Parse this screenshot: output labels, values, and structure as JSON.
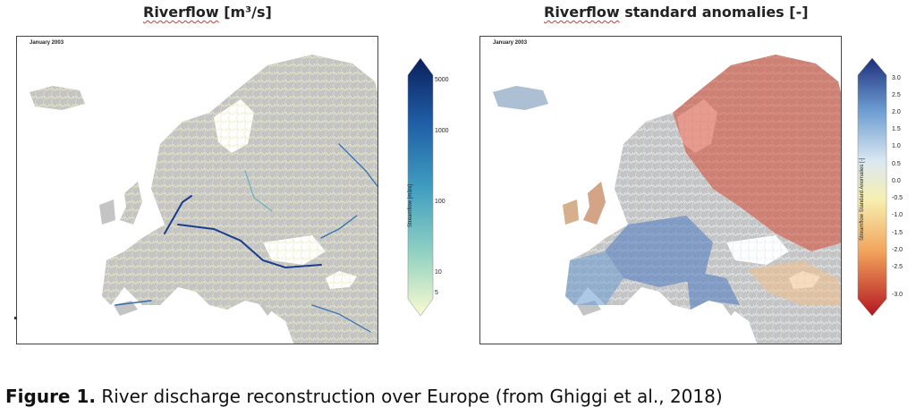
{
  "panel_left": {
    "title_main": "Riverflow",
    "title_unit": "[m³/s]",
    "map_label": "January 2003",
    "colorbar": {
      "label": "Streamflow [m3/s]",
      "ticks": [
        "5000",
        "1000",
        "100",
        "10",
        "5"
      ],
      "colors": [
        "#0b1f5c",
        "#1f5ea6",
        "#3f9dbf",
        "#8fd0c2",
        "#fbfbd0"
      ]
    }
  },
  "panel_right": {
    "title_main": "Riverflow",
    "title_rest": "standard anomalies [-]",
    "map_label": "January 2003",
    "colorbar": {
      "label": "Streamflow Standard Anomalies [-]",
      "ticks": [
        "3.0",
        "2.5",
        "2.0",
        "1.5",
        "1.0",
        "0.5",
        "0.0",
        "-0.5",
        "-1.0",
        "-1.5",
        "-2.0",
        "-2.5",
        "-3.0"
      ],
      "colors": [
        "#1d2f7a",
        "#6b9bd0",
        "#dbe8f2",
        "#f7efb0",
        "#f2a45c",
        "#b3151f"
      ]
    }
  },
  "caption": {
    "label": "Figure 1.",
    "text": " River discharge reconstruction over Europe (from Ghiggi et al., 2018)"
  },
  "colors": {
    "land": "#c4c4c4",
    "left_river": "#f3f0c7",
    "left_river_large": "#1a3c8c",
    "right_river_red": "#d44a33",
    "right_river_blue": "#4a78c0",
    "right_river_light": "#eef1f3"
  }
}
